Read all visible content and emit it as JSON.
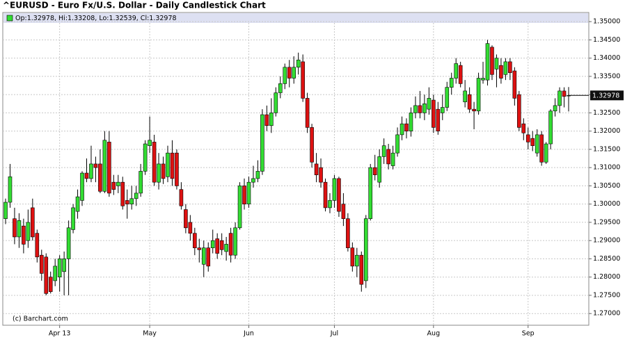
{
  "chart_data": {
    "type": "candlestick",
    "title": "^EURUSD - Euro Fx/U.S. Dollar - Daily Candlestick Chart",
    "legend_text": "Op:1.32978, Hi:1.33208, Lo:1.32539, Cl:1.32978",
    "credit": "(c) Barchart.com",
    "last_price_label": "1.32978",
    "up_color": "#33dd33",
    "down_color": "#dd1111",
    "grid": true,
    "ylim": [
      1.2668,
      1.3525
    ],
    "yticks": [
      {
        "value": 1.27,
        "label": "1.27000"
      },
      {
        "value": 1.275,
        "label": "1.27500"
      },
      {
        "value": 1.28,
        "label": "1.28000"
      },
      {
        "value": 1.285,
        "label": "1.28500"
      },
      {
        "value": 1.29,
        "label": "1.29000"
      },
      {
        "value": 1.295,
        "label": "1.29500"
      },
      {
        "value": 1.3,
        "label": "1.30000"
      },
      {
        "value": 1.305,
        "label": "1.30500"
      },
      {
        "value": 1.31,
        "label": "1.31000"
      },
      {
        "value": 1.315,
        "label": "1.31500"
      },
      {
        "value": 1.32,
        "label": "1.32000"
      },
      {
        "value": 1.325,
        "label": "1.32500"
      },
      {
        "value": 1.33,
        "label": "1.33000"
      },
      {
        "value": 1.335,
        "label": "1.33500"
      },
      {
        "value": 1.34,
        "label": "1.34000"
      },
      {
        "value": 1.345,
        "label": "1.34500"
      },
      {
        "value": 1.35,
        "label": "1.35000"
      }
    ],
    "categories": [
      null,
      null,
      null,
      null,
      null,
      null,
      null,
      null,
      null,
      null,
      null,
      null,
      "Apr 13",
      null,
      null,
      null,
      null,
      null,
      null,
      null,
      null,
      null,
      null,
      null,
      null,
      null,
      null,
      null,
      null,
      null,
      null,
      null,
      "May",
      null,
      null,
      null,
      null,
      null,
      null,
      null,
      null,
      null,
      null,
      null,
      null,
      null,
      null,
      null,
      null,
      null,
      null,
      null,
      null,
      null,
      "Jun",
      null,
      null,
      null,
      null,
      null,
      null,
      null,
      null,
      null,
      null,
      null,
      null,
      null,
      null,
      null,
      null,
      null,
      null,
      "Jul",
      null,
      null,
      null,
      null,
      null,
      null,
      null,
      null,
      null,
      null,
      null,
      null,
      null,
      null,
      null,
      null,
      null,
      null,
      null,
      null,
      null,
      "Aug",
      null,
      null,
      null,
      null,
      null,
      null,
      null,
      null,
      null,
      null,
      null,
      null,
      null,
      null,
      null,
      null,
      null,
      null,
      null,
      null,
      "Sep",
      null,
      null,
      null,
      null,
      null,
      null,
      null,
      null,
      null
    ],
    "open": [
      1.296,
      1.3005,
      1.296,
      1.291,
      1.294,
      1.29,
      1.299,
      1.292,
      1.286,
      1.2855,
      1.28,
      1.279,
      1.28,
      1.2815,
      1.285,
      1.293,
      1.298,
      1.301,
      1.3085,
      1.307,
      1.311,
      1.311,
      1.3035,
      1.317,
      1.306,
      1.305,
      1.306,
      1.301,
      1.3,
      1.3015,
      1.303,
      1.309,
      1.316,
      1.317,
      1.306,
      1.311,
      1.3075,
      1.314,
      1.314,
      1.304,
      1.2985,
      1.295,
      1.292,
      1.288,
      1.2835,
      1.288,
      1.288,
      1.2905,
      1.29,
      1.287,
      1.292,
      1.286,
      1.2935,
      1.305,
      1.3,
      1.306,
      1.307,
      1.309,
      1.3245,
      1.3215,
      1.325,
      1.3305,
      1.333,
      1.3375,
      1.3345,
      1.3375,
      1.339,
      1.329,
      1.321,
      1.311,
      1.31,
      1.306,
      1.299,
      1.301,
      1.307,
      1.3,
      1.296,
      1.288,
      1.283,
      1.286,
      1.279,
      1.296,
      1.31,
      1.306,
      1.313,
      1.315,
      1.3105,
      1.314,
      1.319,
      1.322,
      1.32,
      1.325,
      1.327,
      1.325,
      1.326,
      1.3285,
      1.326,
      1.325,
      1.3265,
      1.332,
      1.3345,
      1.338,
      1.328,
      1.33,
      1.326,
      1.3255,
      1.334,
      1.334,
      1.343,
      1.337,
      1.338,
      1.3355,
      1.339,
      1.3365,
      1.33,
      1.322,
      1.319,
      1.318,
      1.314,
      1.319,
      1.3115,
      1.3165,
      1.3255,
      1.327,
      1.331,
      1.32978
    ],
    "high": [
      1.3015,
      1.311,
      1.299,
      1.2975,
      1.296,
      1.2985,
      1.3015,
      1.293,
      1.2875,
      1.2865,
      1.2815,
      1.285,
      1.286,
      1.287,
      1.2955,
      1.3,
      1.304,
      1.309,
      1.3125,
      1.316,
      1.313,
      1.315,
      1.32,
      1.32,
      1.308,
      1.308,
      1.3075,
      1.304,
      1.305,
      1.305,
      1.311,
      1.3175,
      1.324,
      1.319,
      1.314,
      1.313,
      1.316,
      1.3175,
      1.315,
      1.306,
      1.3,
      1.297,
      1.2935,
      1.2905,
      1.29,
      1.2895,
      1.293,
      1.292,
      1.292,
      1.291,
      1.2935,
      1.295,
      1.306,
      1.307,
      1.3075,
      1.3105,
      1.312,
      1.326,
      1.327,
      1.329,
      1.332,
      1.335,
      1.3385,
      1.3395,
      1.3405,
      1.3415,
      1.341,
      1.3305,
      1.322,
      1.314,
      1.3125,
      1.307,
      1.303,
      1.308,
      1.3075,
      1.303,
      1.2975,
      1.2895,
      1.288,
      1.287,
      1.297,
      1.311,
      1.3135,
      1.315,
      1.318,
      1.3165,
      1.316,
      1.321,
      1.324,
      1.3235,
      1.3265,
      1.3295,
      1.331,
      1.33,
      1.332,
      1.33,
      1.328,
      1.33,
      1.3335,
      1.336,
      1.34,
      1.339,
      1.334,
      1.332,
      1.328,
      1.336,
      1.339,
      1.345,
      1.3435,
      1.341,
      1.34,
      1.34,
      1.34,
      1.3375,
      1.331,
      1.3235,
      1.321,
      1.32,
      1.3205,
      1.32,
      1.317,
      1.326,
      1.329,
      1.332,
      1.332,
      1.33208
    ],
    "low": [
      1.2945,
      1.299,
      1.289,
      1.288,
      1.2865,
      1.288,
      1.29,
      1.284,
      1.279,
      1.275,
      1.2755,
      1.2775,
      1.276,
      1.275,
      1.275,
      1.292,
      1.296,
      1.2995,
      1.306,
      1.306,
      1.306,
      1.303,
      1.303,
      1.302,
      1.3025,
      1.303,
      1.2985,
      1.296,
      1.2985,
      1.2995,
      1.302,
      1.308,
      1.314,
      1.305,
      1.304,
      1.3055,
      1.306,
      1.305,
      1.304,
      1.2985,
      1.292,
      1.29,
      1.286,
      1.284,
      1.28,
      1.2815,
      1.2865,
      1.285,
      1.286,
      1.2845,
      1.284,
      1.285,
      1.293,
      1.2985,
      1.299,
      1.3045,
      1.306,
      1.308,
      1.32,
      1.3195,
      1.324,
      1.329,
      1.3315,
      1.332,
      1.333,
      1.3355,
      1.328,
      1.3195,
      1.31,
      1.306,
      1.3045,
      1.298,
      1.2975,
      1.299,
      1.2965,
      1.294,
      1.287,
      1.2815,
      1.28,
      1.276,
      1.277,
      1.2955,
      1.3065,
      1.3045,
      1.311,
      1.3095,
      1.3095,
      1.313,
      1.3175,
      1.318,
      1.3185,
      1.3235,
      1.3235,
      1.323,
      1.3245,
      1.3195,
      1.319,
      1.323,
      1.3255,
      1.33,
      1.333,
      1.332,
      1.3265,
      1.325,
      1.3205,
      1.3245,
      1.333,
      1.3325,
      1.334,
      1.332,
      1.333,
      1.334,
      1.334,
      1.327,
      1.32,
      1.3175,
      1.315,
      1.3145,
      1.313,
      1.3105,
      1.311,
      1.315,
      1.324,
      1.325,
      1.3265,
      1.32539
    ],
    "close": [
      1.3005,
      1.3075,
      1.291,
      1.2955,
      1.289,
      1.295,
      1.291,
      1.2855,
      1.281,
      1.2755,
      1.276,
      1.283,
      1.285,
      1.285,
      1.2935,
      1.299,
      1.302,
      1.3085,
      1.307,
      1.311,
      1.31,
      1.3035,
      1.3175,
      1.303,
      1.304,
      1.306,
      1.2995,
      1.3,
      1.3015,
      1.303,
      1.309,
      1.3165,
      1.3175,
      1.306,
      1.311,
      1.307,
      1.314,
      1.307,
      1.305,
      1.2995,
      1.2935,
      1.292,
      1.288,
      1.2875,
      1.288,
      1.283,
      1.29,
      1.2865,
      1.2875,
      1.289,
      1.286,
      1.2935,
      1.305,
      1.3,
      1.306,
      1.307,
      1.309,
      1.3245,
      1.3215,
      1.325,
      1.3305,
      1.333,
      1.3375,
      1.3345,
      1.3375,
      1.3395,
      1.329,
      1.321,
      1.3115,
      1.308,
      1.306,
      1.299,
      1.301,
      1.307,
      1.298,
      1.296,
      1.288,
      1.283,
      1.286,
      1.278,
      1.296,
      1.31,
      1.308,
      1.313,
      1.316,
      1.311,
      1.314,
      1.319,
      1.322,
      1.32,
      1.325,
      1.327,
      1.325,
      1.3275,
      1.329,
      1.321,
      1.32,
      1.3265,
      1.332,
      1.3345,
      1.3385,
      1.333,
      1.331,
      1.326,
      1.3255,
      1.3345,
      1.3345,
      1.344,
      1.3355,
      1.34,
      1.3345,
      1.339,
      1.336,
      1.329,
      1.321,
      1.3195,
      1.317,
      1.316,
      1.319,
      1.3115,
      1.3165,
      1.3255,
      1.327,
      1.331,
      1.3295,
      1.32978
    ]
  }
}
